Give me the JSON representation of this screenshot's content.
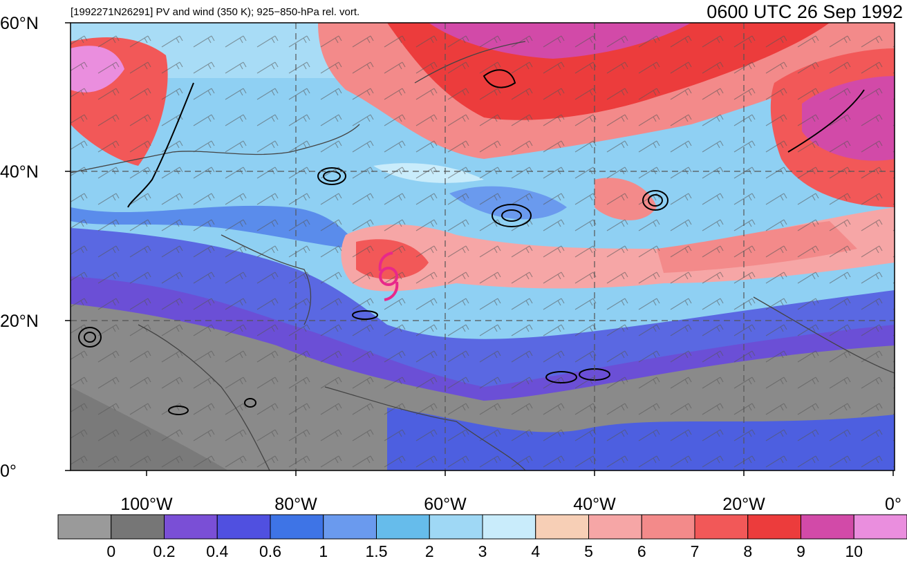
{
  "title": "[1992271N26291] PV and wind (350 K); 925−850-hPa rel. vort.",
  "valid_time": "0600 UTC 26 Sep 1992",
  "lat_labels": [
    "60°N",
    "40°N",
    "20°N",
    "0°"
  ],
  "lon_labels": [
    "100°W",
    "80°W",
    "60°W",
    "40°W",
    "20°W",
    "0°"
  ],
  "colorbar": {
    "labels": [
      "0",
      "0.2",
      "0.4",
      "0.6",
      "1",
      "1.5",
      "2",
      "3",
      "4",
      "5",
      "6",
      "7",
      "8",
      "9",
      "10"
    ],
    "colors": [
      "#9a9a9a",
      "#767676",
      "#7a4fd6",
      "#5050e0",
      "#3e74e6",
      "#6a9aee",
      "#66bceb",
      "#9fd8f5",
      "#c9ecfb",
      "#f7cfb6",
      "#f6a6a6",
      "#f38a8a",
      "#f25858",
      "#ec3c3c",
      "#d24aa8",
      "#ea8ede"
    ]
  },
  "storm_marker": {
    "name": "tropical cyclone symbol",
    "lon": -67.5,
    "lat": 26.5,
    "color": "#e8288a"
  }
}
